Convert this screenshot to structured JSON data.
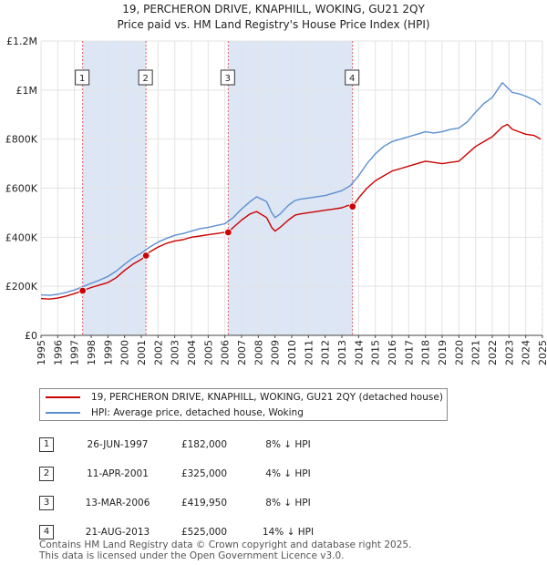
{
  "title_line1": "19, PERCHERON DRIVE, KNAPHILL, WOKING, GU21 2QY",
  "title_line2": "Price paid vs. HM Land Registry's House Price Index (HPI)",
  "colors": {
    "property": "#cc0000",
    "hpi": "#5b8fd0",
    "shade": "#dde6f5",
    "marker": "#cc0000"
  },
  "chart_data": {
    "type": "line",
    "title": "Price paid vs. HM Land Registry's House Price Index (HPI)",
    "xlabel": "",
    "ylabel": "",
    "xlim": [
      1995,
      2025
    ],
    "ylim": [
      0,
      1200000
    ],
    "yticks": [
      {
        "value": 0,
        "label": "£0"
      },
      {
        "value": 200000,
        "label": "£200K"
      },
      {
        "value": 400000,
        "label": "£400K"
      },
      {
        "value": 600000,
        "label": "£600K"
      },
      {
        "value": 800000,
        "label": "£800K"
      },
      {
        "value": 1000000,
        "label": "£1M"
      },
      {
        "value": 1200000,
        "label": "£1.2M"
      }
    ],
    "xticks": [
      "1995",
      "1996",
      "1997",
      "1998",
      "1999",
      "2000",
      "2001",
      "2002",
      "2003",
      "2004",
      "2005",
      "2006",
      "2007",
      "2008",
      "2009",
      "2010",
      "2011",
      "2012",
      "2013",
      "2014",
      "2015",
      "2016",
      "2017",
      "2018",
      "2019",
      "2020",
      "2021",
      "2022",
      "2023",
      "2024",
      "2025"
    ],
    "series": [
      {
        "name": "19, PERCHERON DRIVE, KNAPHILL, WOKING, GU21 2QY (detached house)",
        "color": "#cc0000",
        "x": [
          1995.0,
          1995.5,
          1996.0,
          1996.5,
          1997.0,
          1997.49,
          1998.0,
          1998.5,
          1999.0,
          1999.5,
          2000.0,
          2000.5,
          2001.0,
          2001.28,
          2001.5,
          2002.0,
          2002.5,
          2003.0,
          2003.5,
          2004.0,
          2004.5,
          2005.0,
          2005.5,
          2006.0,
          2006.2,
          2006.5,
          2007.0,
          2007.5,
          2007.9,
          2008.5,
          2008.8,
          2009.0,
          2009.3,
          2009.8,
          2010.2,
          2010.5,
          2011.0,
          2011.5,
          2012.0,
          2012.5,
          2013.0,
          2013.4,
          2013.64,
          2014.0,
          2014.5,
          2015.0,
          2015.5,
          2016.0,
          2016.5,
          2017.0,
          2017.5,
          2018.0,
          2018.5,
          2019.0,
          2019.5,
          2020.0,
          2020.5,
          2021.0,
          2021.5,
          2022.0,
          2022.3,
          2022.6,
          2022.9,
          2023.2,
          2023.6,
          2024.0,
          2024.5,
          2024.9
        ],
        "values": [
          150000,
          148000,
          152000,
          160000,
          170000,
          182000,
          195000,
          205000,
          215000,
          235000,
          265000,
          290000,
          310000,
          325000,
          340000,
          360000,
          375000,
          385000,
          390000,
          400000,
          405000,
          410000,
          415000,
          420000,
          419950,
          440000,
          470000,
          495000,
          505000,
          480000,
          440000,
          425000,
          440000,
          470000,
          490000,
          495000,
          500000,
          505000,
          510000,
          515000,
          520000,
          530000,
          525000,
          560000,
          600000,
          630000,
          650000,
          670000,
          680000,
          690000,
          700000,
          710000,
          705000,
          700000,
          705000,
          710000,
          740000,
          770000,
          790000,
          810000,
          830000,
          850000,
          860000,
          840000,
          830000,
          820000,
          815000,
          800000
        ]
      },
      {
        "name": "HPI: Average price, detached house, Woking",
        "color": "#5b8fd0",
        "x": [
          1995.0,
          1995.5,
          1996.0,
          1996.5,
          1997.0,
          1997.5,
          1998.0,
          1998.5,
          1999.0,
          1999.5,
          2000.0,
          2000.5,
          2001.0,
          2001.5,
          2002.0,
          2002.5,
          2003.0,
          2003.5,
          2004.0,
          2004.5,
          2005.0,
          2005.5,
          2006.0,
          2006.5,
          2007.0,
          2007.5,
          2007.9,
          2008.5,
          2008.8,
          2009.0,
          2009.3,
          2009.8,
          2010.2,
          2010.5,
          2011.0,
          2011.5,
          2012.0,
          2012.5,
          2013.0,
          2013.5,
          2014.0,
          2014.5,
          2015.0,
          2015.5,
          2016.0,
          2016.5,
          2017.0,
          2017.5,
          2018.0,
          2018.5,
          2019.0,
          2019.5,
          2020.0,
          2020.5,
          2021.0,
          2021.5,
          2022.0,
          2022.3,
          2022.6,
          2022.9,
          2023.2,
          2023.6,
          2024.0,
          2024.5,
          2024.9
        ],
        "values": [
          165000,
          163000,
          167000,
          175000,
          185000,
          198000,
          212000,
          225000,
          240000,
          262000,
          290000,
          315000,
          335000,
          360000,
          380000,
          395000,
          408000,
          415000,
          425000,
          435000,
          440000,
          448000,
          455000,
          480000,
          515000,
          545000,
          565000,
          545000,
          500000,
          480000,
          495000,
          530000,
          550000,
          555000,
          560000,
          565000,
          570000,
          580000,
          590000,
          610000,
          650000,
          700000,
          740000,
          770000,
          790000,
          800000,
          810000,
          820000,
          830000,
          825000,
          830000,
          840000,
          845000,
          870000,
          910000,
          945000,
          970000,
          1000000,
          1030000,
          1010000,
          990000,
          985000,
          975000,
          960000,
          940000
        ]
      }
    ],
    "sales": [
      {
        "id": "1",
        "x": 1997.49,
        "price": 182000
      },
      {
        "id": "2",
        "x": 2001.28,
        "price": 325000
      },
      {
        "id": "3",
        "x": 2006.2,
        "price": 419950
      },
      {
        "id": "4",
        "x": 2013.64,
        "price": 525000
      }
    ],
    "shaded_ranges": [
      [
        1997.49,
        2001.28
      ],
      [
        2006.2,
        2013.64
      ]
    ],
    "hatched_from": 2024.95
  },
  "legend": {
    "property_label": "19, PERCHERON DRIVE, KNAPHILL, WOKING, GU21 2QY (detached house)",
    "hpi_label": "HPI: Average price, detached house, Woking"
  },
  "table": [
    {
      "num": "1",
      "date": "26-JUN-1997",
      "price": "£182,000",
      "hpi": "8% ↓ HPI"
    },
    {
      "num": "2",
      "date": "11-APR-2001",
      "price": "£325,000",
      "hpi": "4% ↓ HPI"
    },
    {
      "num": "3",
      "date": "13-MAR-2006",
      "price": "£419,950",
      "hpi": "8% ↓ HPI"
    },
    {
      "num": "4",
      "date": "21-AUG-2013",
      "price": "£525,000",
      "hpi": "14% ↓ HPI"
    }
  ],
  "footer_line1": "Contains HM Land Registry data © Crown copyright and database right 2025.",
  "footer_line2": "This data is licensed under the Open Government Licence v3.0."
}
